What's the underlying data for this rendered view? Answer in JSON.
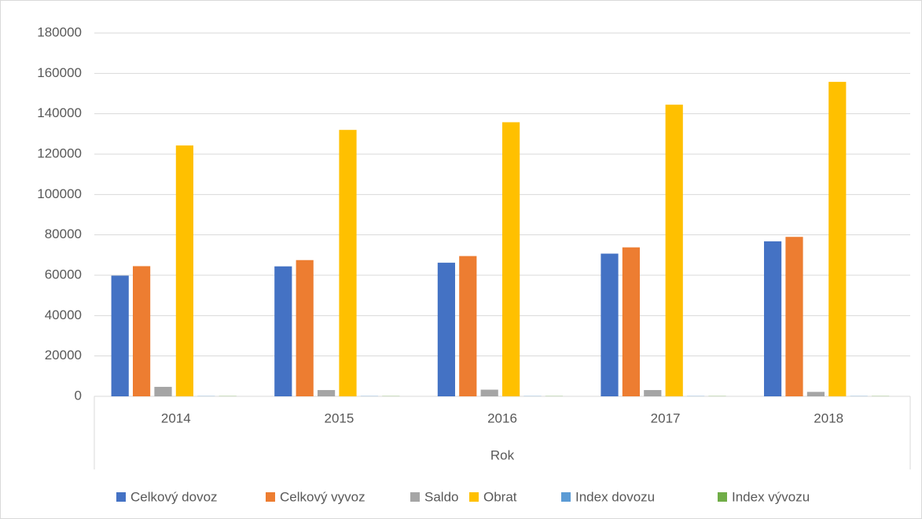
{
  "chart_data": {
    "type": "bar",
    "x_label": "Rok",
    "categories": [
      "2014",
      "2015",
      "2016",
      "2017",
      "2018"
    ],
    "series": [
      {
        "name": "Celkový dovoz",
        "color": "#4472c4",
        "values": [
          59800,
          64400,
          66200,
          70700,
          76800
        ]
      },
      {
        "name": "Celkový vyvoz",
        "color": "#ed7d31",
        "values": [
          64500,
          67500,
          69500,
          73800,
          79000
        ]
      },
      {
        "name": "Saldo",
        "color": "#a5a5a5",
        "values": [
          4700,
          3100,
          3300,
          3100,
          2200
        ]
      },
      {
        "name": "Obrat",
        "color": "#ffc000",
        "values": [
          124300,
          132000,
          135800,
          144500,
          155800
        ]
      },
      {
        "name": "Index dovozu",
        "color": "#5b9bd5",
        "values": [
          105,
          108,
          103,
          107,
          109
        ]
      },
      {
        "name": "Index vývozu",
        "color": "#70ad47",
        "values": [
          106,
          105,
          103,
          106,
          107
        ]
      }
    ],
    "ylim": [
      0,
      180000
    ],
    "yticks": [
      0,
      20000,
      40000,
      60000,
      80000,
      100000,
      120000,
      140000,
      160000,
      180000
    ],
    "grid": true,
    "legend": "bottom"
  }
}
